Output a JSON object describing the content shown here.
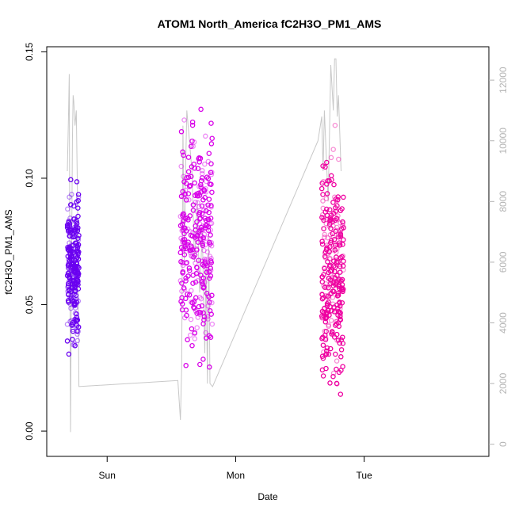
{
  "chart_data": {
    "type": "scatter",
    "title": "ATOM1 North_America fC2H3O_PM1_AMS",
    "xlabel": "Date",
    "ylabel": "fC2H3O_PM1_AMS",
    "x_ticks": [
      {
        "label": "Sun",
        "t": 1.0
      },
      {
        "label": "Mon",
        "t": 2.0
      },
      {
        "label": "Tue",
        "t": 3.0
      }
    ],
    "xlim": [
      0.53,
      3.97
    ],
    "ylim": [
      -0.01,
      0.152
    ],
    "y_ticks": [
      "0.00",
      "0.05",
      "0.10",
      "0.15"
    ],
    "y2_ticks": [
      "0",
      "2000",
      "4000",
      "6000",
      "8000",
      "10000",
      "12000"
    ],
    "y2lim": [
      -400,
      13100
    ],
    "grid": false,
    "series": [
      {
        "color": "#6a00f0",
        "t_range": [
          0.69,
          0.78
        ],
        "y_center": 0.065,
        "y_spread": 0.014,
        "n": 260,
        "y_min": 0.01,
        "y_max": 0.121
      },
      {
        "color": "#d800e8",
        "t_range": [
          1.57,
          1.82
        ],
        "y_center": 0.075,
        "y_spread": 0.022,
        "n": 320,
        "y_min": -0.002,
        "y_max": 0.15
      },
      {
        "color": "#ee00a0",
        "t_range": [
          2.67,
          2.84
        ],
        "y_center": 0.063,
        "y_spread": 0.02,
        "n": 300,
        "y_min": -0.004,
        "y_max": 0.139
      }
    ],
    "secondary_series": {
      "color": "#c8c8c8",
      "points": [
        [
          0.69,
          9000
        ],
        [
          0.7,
          11000
        ],
        [
          0.705,
          12200
        ],
        [
          0.71,
          6000
        ],
        [
          0.715,
          400
        ],
        [
          0.72,
          4000
        ],
        [
          0.73,
          10000
        ],
        [
          0.735,
          11500
        ],
        [
          0.74,
          11300
        ],
        [
          0.75,
          10500
        ],
        [
          0.76,
          11000
        ],
        [
          0.77,
          8000
        ],
        [
          0.775,
          5000
        ],
        [
          0.78,
          1900
        ],
        [
          1.55,
          2100
        ],
        [
          1.57,
          800
        ],
        [
          1.58,
          2500
        ],
        [
          1.59,
          10500
        ],
        [
          1.6,
          6000
        ],
        [
          1.61,
          9000
        ],
        [
          1.62,
          11000
        ],
        [
          1.64,
          10000
        ],
        [
          1.66,
          9000
        ],
        [
          1.68,
          6000
        ],
        [
          1.7,
          8000
        ],
        [
          1.72,
          5000
        ],
        [
          1.74,
          7000
        ],
        [
          1.76,
          3000
        ],
        [
          1.77,
          6000
        ],
        [
          1.78,
          2000
        ],
        [
          1.79,
          7000
        ],
        [
          1.8,
          2000
        ],
        [
          1.82,
          1900
        ],
        [
          2.64,
          10000
        ],
        [
          2.67,
          10800
        ],
        [
          2.68,
          9000
        ],
        [
          2.69,
          11000
        ],
        [
          2.7,
          10000
        ],
        [
          2.72,
          8000
        ],
        [
          2.74,
          12500
        ],
        [
          2.76,
          11000
        ],
        [
          2.77,
          12700
        ],
        [
          2.78,
          12700
        ],
        [
          2.79,
          10800
        ],
        [
          2.8,
          11500
        ],
        [
          2.82,
          9000
        ]
      ]
    }
  }
}
